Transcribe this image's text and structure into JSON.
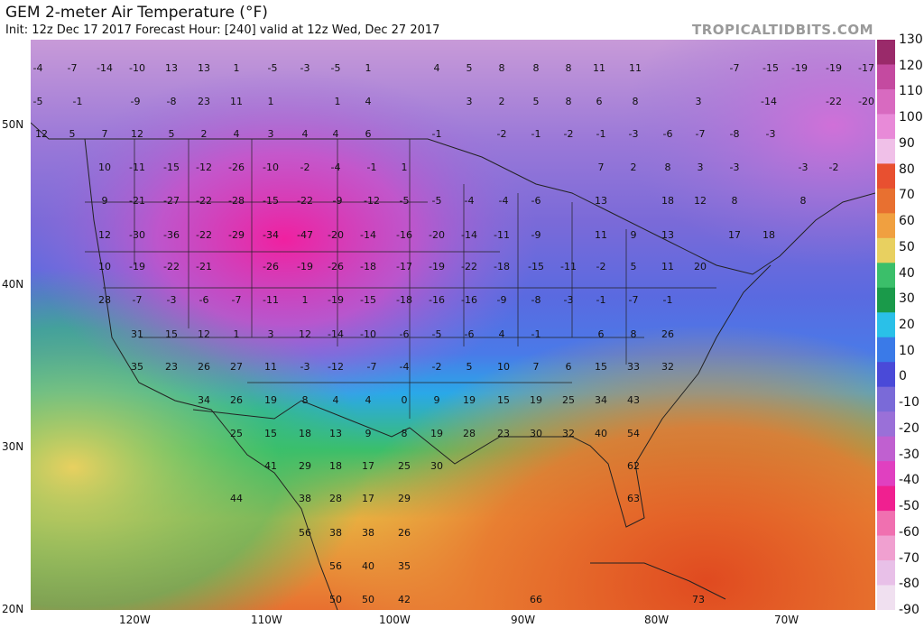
{
  "header": {
    "title": "GEM 2-meter Air Temperature (°F)",
    "subtitle": "Init: 12z Dec 17 2017   Forecast Hour: [240]   valid at 12z Wed, Dec 27 2017",
    "brand": "TROPICALTIDBITS.COM"
  },
  "axes": {
    "latitude_labels": [
      "50N",
      "40N",
      "30N",
      "20N"
    ],
    "longitude_labels": [
      "120W",
      "110W",
      "100W",
      "90W",
      "80W",
      "70W"
    ]
  },
  "colorbar": {
    "labels": [
      "130",
      "120",
      "110",
      "100",
      "90",
      "80",
      "70",
      "60",
      "50",
      "40",
      "30",
      "20",
      "10",
      "0",
      "-10",
      "-20",
      "-30",
      "-40",
      "-50",
      "-60",
      "-70",
      "-80",
      "-90"
    ],
    "colors": [
      "#9a2a6a",
      "#c44aa0",
      "#d86ac0",
      "#e88ad8",
      "#f0c0e8",
      "#e85030",
      "#e87030",
      "#f0a040",
      "#e8d060",
      "#3bbf6a",
      "#1a9a4a",
      "#2ac0e8",
      "#3a7ae8",
      "#4a4ad8",
      "#7a6ad8",
      "#9a70d8",
      "#c060d0",
      "#e040c0",
      "#f02090",
      "#f070b0",
      "#f0a0d0",
      "#e8c0e8",
      "#f0e0f0"
    ]
  },
  "temperatures": [
    {
      "v": "-4"
    },
    {
      "v": "-7"
    },
    {
      "v": "-14"
    },
    {
      "v": "-10"
    },
    {
      "v": "13"
    },
    {
      "v": "13"
    },
    {
      "v": "1"
    },
    {
      "v": "-5"
    },
    {
      "v": "-3"
    },
    {
      "v": "-5"
    },
    {
      "v": "1"
    },
    {
      "v": "4"
    },
    {
      "v": "5"
    },
    {
      "v": "8"
    },
    {
      "v": "8"
    },
    {
      "v": "8"
    },
    {
      "v": "11"
    },
    {
      "v": "11"
    },
    {
      "v": "-7"
    },
    {
      "v": "-15"
    },
    {
      "v": "-19"
    },
    {
      "v": "-19"
    },
    {
      "v": "-17"
    },
    {
      "v": "-5"
    },
    {
      "v": "-1"
    },
    {
      "v": "-9"
    },
    {
      "v": "-8"
    },
    {
      "v": "23"
    },
    {
      "v": "11"
    },
    {
      "v": "1"
    },
    {
      "v": "1"
    },
    {
      "v": "4"
    },
    {
      "v": "3"
    },
    {
      "v": "2"
    },
    {
      "v": "5"
    },
    {
      "v": "8"
    },
    {
      "v": "6"
    },
    {
      "v": "8"
    },
    {
      "v": "3"
    },
    {
      "v": "-14"
    },
    {
      "v": "-22"
    },
    {
      "v": "-20"
    },
    {
      "v": "12"
    },
    {
      "v": "5"
    },
    {
      "v": "7"
    },
    {
      "v": "12"
    },
    {
      "v": "5"
    },
    {
      "v": "2"
    },
    {
      "v": "4"
    },
    {
      "v": "3"
    },
    {
      "v": "4"
    },
    {
      "v": "4"
    },
    {
      "v": "6"
    },
    {
      "v": "-1"
    },
    {
      "v": "-2"
    },
    {
      "v": "-1"
    },
    {
      "v": "-2"
    },
    {
      "v": "-1"
    },
    {
      "v": "-3"
    },
    {
      "v": "-6"
    },
    {
      "v": "-7"
    },
    {
      "v": "-8"
    },
    {
      "v": "-3"
    },
    {
      "v": "10"
    },
    {
      "v": "-11"
    },
    {
      "v": "-15"
    },
    {
      "v": "-12"
    },
    {
      "v": "-26"
    },
    {
      "v": "-10"
    },
    {
      "v": "-2"
    },
    {
      "v": "-4"
    },
    {
      "v": "-1"
    },
    {
      "v": "1"
    },
    {
      "v": "7"
    },
    {
      "v": "2"
    },
    {
      "v": "8"
    },
    {
      "v": "3"
    },
    {
      "v": "-3"
    },
    {
      "v": "-3"
    },
    {
      "v": "-2"
    },
    {
      "v": "9"
    },
    {
      "v": "-21"
    },
    {
      "v": "-27"
    },
    {
      "v": "-22"
    },
    {
      "v": "-28"
    },
    {
      "v": "-15"
    },
    {
      "v": "-22"
    },
    {
      "v": "-9"
    },
    {
      "v": "-12"
    },
    {
      "v": "-5"
    },
    {
      "v": "-5"
    },
    {
      "v": "-4"
    },
    {
      "v": "-4"
    },
    {
      "v": "-6"
    },
    {
      "v": "13"
    },
    {
      "v": "18"
    },
    {
      "v": "12"
    },
    {
      "v": "8"
    },
    {
      "v": "8"
    },
    {
      "v": "12"
    },
    {
      "v": "-30"
    },
    {
      "v": "-36"
    },
    {
      "v": "-22"
    },
    {
      "v": "-29"
    },
    {
      "v": "-34"
    },
    {
      "v": "-47"
    },
    {
      "v": "-20"
    },
    {
      "v": "-14"
    },
    {
      "v": "-16"
    },
    {
      "v": "-20"
    },
    {
      "v": "-14"
    },
    {
      "v": "-11"
    },
    {
      "v": "-9"
    },
    {
      "v": "11"
    },
    {
      "v": "9"
    },
    {
      "v": "13"
    },
    {
      "v": "17"
    },
    {
      "v": "18"
    },
    {
      "v": "10"
    },
    {
      "v": "-19"
    },
    {
      "v": "-22"
    },
    {
      "v": "-21"
    },
    {
      "v": "-26"
    },
    {
      "v": "-19"
    },
    {
      "v": "-26"
    },
    {
      "v": "-18"
    },
    {
      "v": "-17"
    },
    {
      "v": "-19"
    },
    {
      "v": "-22"
    },
    {
      "v": "-18"
    },
    {
      "v": "-15"
    },
    {
      "v": "-11"
    },
    {
      "v": "-2"
    },
    {
      "v": "5"
    },
    {
      "v": "11"
    },
    {
      "v": "20"
    },
    {
      "v": "28"
    },
    {
      "v": "-7"
    },
    {
      "v": "-3"
    },
    {
      "v": "-6"
    },
    {
      "v": "-7"
    },
    {
      "v": "-11"
    },
    {
      "v": "1"
    },
    {
      "v": "-19"
    },
    {
      "v": "-15"
    },
    {
      "v": "-18"
    },
    {
      "v": "-16"
    },
    {
      "v": "-16"
    },
    {
      "v": "-9"
    },
    {
      "v": "-8"
    },
    {
      "v": "-3"
    },
    {
      "v": "-1"
    },
    {
      "v": "-7"
    },
    {
      "v": "-1"
    },
    {
      "v": "31"
    },
    {
      "v": "15"
    },
    {
      "v": "12"
    },
    {
      "v": "1"
    },
    {
      "v": "3"
    },
    {
      "v": "12"
    },
    {
      "v": "-14"
    },
    {
      "v": "-10"
    },
    {
      "v": "-6"
    },
    {
      "v": "-5"
    },
    {
      "v": "-6"
    },
    {
      "v": "4"
    },
    {
      "v": "-1"
    },
    {
      "v": "6"
    },
    {
      "v": "8"
    },
    {
      "v": "26"
    },
    {
      "v": "35"
    },
    {
      "v": "23"
    },
    {
      "v": "26"
    },
    {
      "v": "27"
    },
    {
      "v": "11"
    },
    {
      "v": "-3"
    },
    {
      "v": "-12"
    },
    {
      "v": "-7"
    },
    {
      "v": "-4"
    },
    {
      "v": "-2"
    },
    {
      "v": "5"
    },
    {
      "v": "10"
    },
    {
      "v": "7"
    },
    {
      "v": "6"
    },
    {
      "v": "15"
    },
    {
      "v": "33"
    },
    {
      "v": "32"
    },
    {
      "v": "34"
    },
    {
      "v": "26"
    },
    {
      "v": "19"
    },
    {
      "v": "8"
    },
    {
      "v": "4"
    },
    {
      "v": "4"
    },
    {
      "v": "0"
    },
    {
      "v": "9"
    },
    {
      "v": "19"
    },
    {
      "v": "15"
    },
    {
      "v": "19"
    },
    {
      "v": "25"
    },
    {
      "v": "34"
    },
    {
      "v": "43"
    },
    {
      "v": "25"
    },
    {
      "v": "15"
    },
    {
      "v": "18"
    },
    {
      "v": "13"
    },
    {
      "v": "9"
    },
    {
      "v": "8"
    },
    {
      "v": "19"
    },
    {
      "v": "28"
    },
    {
      "v": "23"
    },
    {
      "v": "30"
    },
    {
      "v": "32"
    },
    {
      "v": "40"
    },
    {
      "v": "54"
    },
    {
      "v": "41"
    },
    {
      "v": "29"
    },
    {
      "v": "18"
    },
    {
      "v": "17"
    },
    {
      "v": "25"
    },
    {
      "v": "30"
    },
    {
      "v": "62"
    },
    {
      "v": "44"
    },
    {
      "v": "38"
    },
    {
      "v": "28"
    },
    {
      "v": "17"
    },
    {
      "v": "29"
    },
    {
      "v": "63"
    },
    {
      "v": "56"
    },
    {
      "v": "38"
    },
    {
      "v": "38"
    },
    {
      "v": "26"
    },
    {
      "v": "56"
    },
    {
      "v": "40"
    },
    {
      "v": "35"
    },
    {
      "v": "50"
    },
    {
      "v": "50"
    },
    {
      "v": "42"
    },
    {
      "v": "66"
    },
    {
      "v": "73"
    }
  ]
}
